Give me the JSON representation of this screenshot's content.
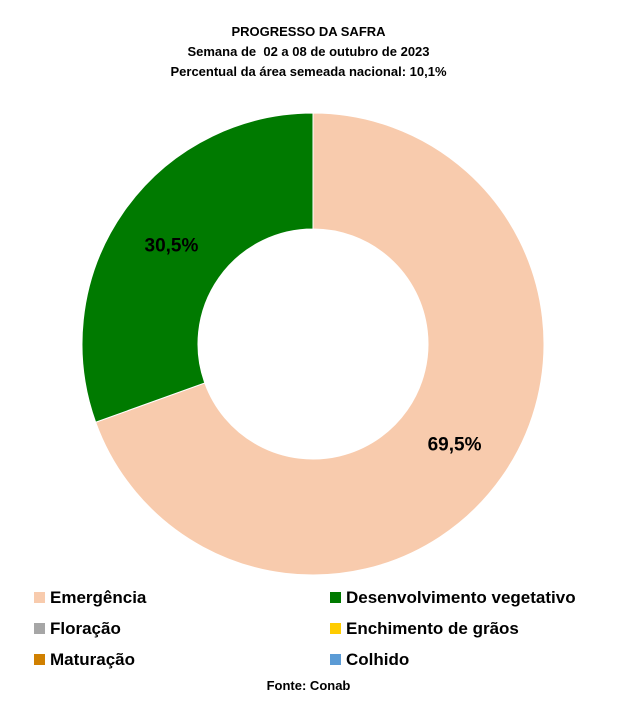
{
  "chart_data": {
    "type": "pie",
    "variant": "donut",
    "title": "PROGRESSO DA SAFRA",
    "subtitle": "Semana de  02 a 08 de outubro de 2023",
    "subtitle2": "Percentual da área semeada nacional: 10,1%",
    "categories": [
      "Emergência",
      "Desenvolvimento vegetativo",
      "Floração",
      "Enchimento de grãos",
      "Maturação",
      "Colhido"
    ],
    "values": [
      69.5,
      30.5,
      0,
      0,
      0,
      0
    ],
    "data_labels": [
      "69,5%",
      "30,5%",
      "",
      "",
      "",
      ""
    ],
    "colors": [
      "#F8CBAD",
      "#007A00",
      "#A6A6A6",
      "#FFCC00",
      "#D08000",
      "#5B9BD5"
    ],
    "legend_placement": "bottom",
    "source": "Fonte: Conab"
  }
}
